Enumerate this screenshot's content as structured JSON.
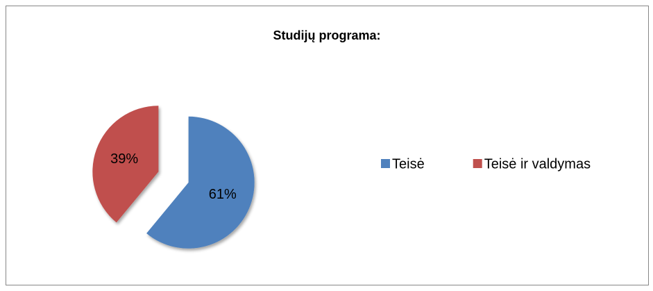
{
  "chart_data": {
    "type": "pie",
    "title": "Studijų programa:",
    "categories": [
      "Teisė",
      "Teisė ir valdymas"
    ],
    "values": [
      61,
      39
    ],
    "value_labels": [
      "61%",
      "39%"
    ],
    "colors": [
      "#4f81bd",
      "#c0504d"
    ],
    "legend": "right",
    "exploded": true
  }
}
